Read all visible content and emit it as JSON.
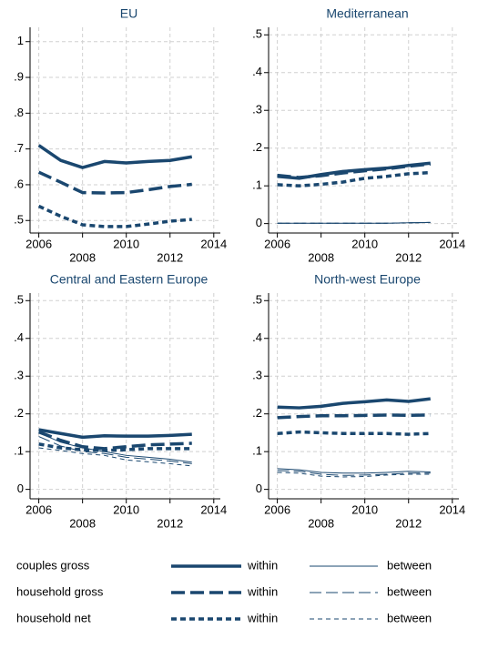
{
  "chart_data": [
    {
      "type": "line",
      "title": "EU",
      "x": [
        2006,
        2007,
        2008,
        2009,
        2010,
        2011,
        2012,
        2013
      ],
      "xlim": [
        2005.6,
        2014.3
      ],
      "xticks": [
        2006,
        2008,
        2010,
        2012,
        2014
      ],
      "ylim": [
        0.465,
        1.04
      ],
      "yticks": [
        {
          "value": 0.5,
          "label": ".5"
        },
        {
          "value": 0.6,
          "label": ".6"
        },
        {
          "value": 0.7,
          "label": ".7"
        },
        {
          "value": 0.8,
          "label": ".8"
        },
        {
          "value": 0.9,
          "label": ".9"
        },
        1
      ],
      "grid": true,
      "series": [
        {
          "name": "couples gross",
          "component": "within",
          "color": "#1a476f",
          "width": 3.5,
          "dash": "solid",
          "values": [
            0.71,
            0.668,
            0.648,
            0.665,
            0.661,
            0.665,
            0.668,
            0.678
          ]
        },
        {
          "name": "household gross",
          "component": "within",
          "color": "#1a476f",
          "width": 3.5,
          "dash": "long",
          "values": [
            0.635,
            0.607,
            0.578,
            0.577,
            0.578,
            0.586,
            0.595,
            0.601
          ]
        },
        {
          "name": "household net",
          "component": "within",
          "color": "#1a476f",
          "width": 3.5,
          "dash": "short",
          "values": [
            0.54,
            0.512,
            0.488,
            0.483,
            0.483,
            0.49,
            0.498,
            0.503
          ]
        }
      ]
    },
    {
      "type": "line",
      "title": "Mediterranean",
      "x": [
        2006,
        2007,
        2008,
        2009,
        2010,
        2011,
        2012,
        2013
      ],
      "xlim": [
        2005.6,
        2014.3
      ],
      "xticks": [
        2006,
        2008,
        2010,
        2012,
        2014
      ],
      "ylim": [
        -0.025,
        0.52
      ],
      "yticks": [
        0,
        {
          "value": 0.1,
          "label": ".1"
        },
        {
          "value": 0.2,
          "label": ".2"
        },
        {
          "value": 0.3,
          "label": ".3"
        },
        {
          "value": 0.4,
          "label": ".4"
        },
        {
          "value": 0.5,
          "label": ".5"
        }
      ],
      "grid": true,
      "series": [
        {
          "name": "couples gross",
          "component": "within",
          "color": "#1a476f",
          "width": 3.5,
          "dash": "solid",
          "values": [
            0.125,
            0.12,
            0.13,
            0.138,
            0.143,
            0.147,
            0.154,
            0.16
          ]
        },
        {
          "name": "couples gross",
          "component": "between",
          "color": "#1a476f",
          "width": 1,
          "dash": "solid",
          "values": [
            0.001,
            0.001,
            0.001,
            0.001,
            0.001,
            0.001,
            0.002,
            0.003
          ]
        },
        {
          "name": "household gross",
          "component": "within",
          "color": "#1a476f",
          "width": 3.5,
          "dash": "long",
          "values": [
            0.128,
            0.122,
            0.127,
            0.134,
            0.14,
            0.145,
            0.152,
            0.158
          ]
        },
        {
          "name": "household gross",
          "component": "between",
          "color": "#1a476f",
          "width": 1,
          "dash": "long",
          "values": [
            0.001,
            0.001,
            0.001,
            0.001,
            0.001,
            0.001,
            0.002,
            0.003
          ]
        },
        {
          "name": "household net",
          "component": "within",
          "color": "#1a476f",
          "width": 3.5,
          "dash": "short",
          "values": [
            0.103,
            0.1,
            0.104,
            0.11,
            0.12,
            0.125,
            0.132,
            0.135
          ]
        },
        {
          "name": "household net",
          "component": "between",
          "color": "#1a476f",
          "width": 1,
          "dash": "short",
          "values": [
            0.001,
            0.001,
            0.001,
            0.001,
            0.001,
            0.001,
            0.002,
            0.003
          ]
        }
      ]
    },
    {
      "type": "line",
      "title": "Central and Eastern Europe",
      "x": [
        2006,
        2007,
        2008,
        2009,
        2010,
        2011,
        2012,
        2013
      ],
      "xlim": [
        2005.6,
        2014.3
      ],
      "xticks": [
        2006,
        2008,
        2010,
        2012,
        2014
      ],
      "ylim": [
        -0.025,
        0.52
      ],
      "yticks": [
        0,
        {
          "value": 0.1,
          "label": ".1"
        },
        {
          "value": 0.2,
          "label": ".2"
        },
        {
          "value": 0.3,
          "label": ".3"
        },
        {
          "value": 0.4,
          "label": ".4"
        },
        {
          "value": 0.5,
          "label": ".5"
        }
      ],
      "grid": true,
      "series": [
        {
          "name": "couples gross",
          "component": "within",
          "color": "#1a476f",
          "width": 3.5,
          "dash": "solid",
          "values": [
            0.158,
            0.148,
            0.138,
            0.142,
            0.141,
            0.141,
            0.143,
            0.146
          ]
        },
        {
          "name": "couples gross",
          "component": "between",
          "color": "#1a476f",
          "width": 1,
          "dash": "solid",
          "values": [
            0.15,
            0.125,
            0.11,
            0.1,
            0.09,
            0.085,
            0.08,
            0.072
          ]
        },
        {
          "name": "household gross",
          "component": "within",
          "color": "#1a476f",
          "width": 3.5,
          "dash": "long",
          "values": [
            0.152,
            0.13,
            0.113,
            0.108,
            0.113,
            0.118,
            0.12,
            0.122
          ]
        },
        {
          "name": "household gross",
          "component": "between",
          "color": "#1a476f",
          "width": 1,
          "dash": "long",
          "values": [
            0.14,
            0.115,
            0.1,
            0.095,
            0.085,
            0.08,
            0.075,
            0.068
          ]
        },
        {
          "name": "household net",
          "component": "within",
          "color": "#1a476f",
          "width": 3.5,
          "dash": "short",
          "values": [
            0.12,
            0.11,
            0.105,
            0.103,
            0.105,
            0.108,
            0.108,
            0.108
          ]
        },
        {
          "name": "household net",
          "component": "between",
          "color": "#1a476f",
          "width": 1,
          "dash": "short",
          "values": [
            0.11,
            0.103,
            0.095,
            0.09,
            0.078,
            0.073,
            0.068,
            0.062
          ]
        }
      ]
    },
    {
      "type": "line",
      "title": "North-west Europe",
      "x": [
        2006,
        2007,
        2008,
        2009,
        2010,
        2011,
        2012,
        2013
      ],
      "xlim": [
        2005.6,
        2014.3
      ],
      "xticks": [
        2006,
        2008,
        2010,
        2012,
        2014
      ],
      "ylim": [
        -0.025,
        0.52
      ],
      "yticks": [
        0,
        {
          "value": 0.1,
          "label": ".1"
        },
        {
          "value": 0.2,
          "label": ".2"
        },
        {
          "value": 0.3,
          "label": ".3"
        },
        {
          "value": 0.4,
          "label": ".4"
        },
        {
          "value": 0.5,
          "label": ".5"
        }
      ],
      "grid": true,
      "series": [
        {
          "name": "couples gross",
          "component": "within",
          "color": "#1a476f",
          "width": 3.5,
          "dash": "solid",
          "values": [
            0.218,
            0.216,
            0.22,
            0.228,
            0.232,
            0.237,
            0.233,
            0.24
          ]
        },
        {
          "name": "couples gross",
          "component": "between",
          "color": "#1a476f",
          "width": 1,
          "dash": "solid",
          "values": [
            0.055,
            0.052,
            0.045,
            0.043,
            0.043,
            0.045,
            0.048,
            0.046
          ]
        },
        {
          "name": "household gross",
          "component": "within",
          "color": "#1a476f",
          "width": 3.5,
          "dash": "long",
          "values": [
            0.19,
            0.193,
            0.195,
            0.195,
            0.196,
            0.197,
            0.196,
            0.197
          ]
        },
        {
          "name": "household gross",
          "component": "between",
          "color": "#1a476f",
          "width": 1,
          "dash": "long",
          "values": [
            0.05,
            0.048,
            0.04,
            0.037,
            0.038,
            0.04,
            0.043,
            0.043
          ]
        },
        {
          "name": "household net",
          "component": "within",
          "color": "#1a476f",
          "width": 3.5,
          "dash": "short",
          "values": [
            0.148,
            0.152,
            0.15,
            0.148,
            0.148,
            0.148,
            0.146,
            0.148
          ]
        },
        {
          "name": "household net",
          "component": "between",
          "color": "#1a476f",
          "width": 1,
          "dash": "short",
          "values": [
            0.045,
            0.043,
            0.035,
            0.033,
            0.034,
            0.038,
            0.04,
            0.04
          ]
        }
      ]
    }
  ]
}
